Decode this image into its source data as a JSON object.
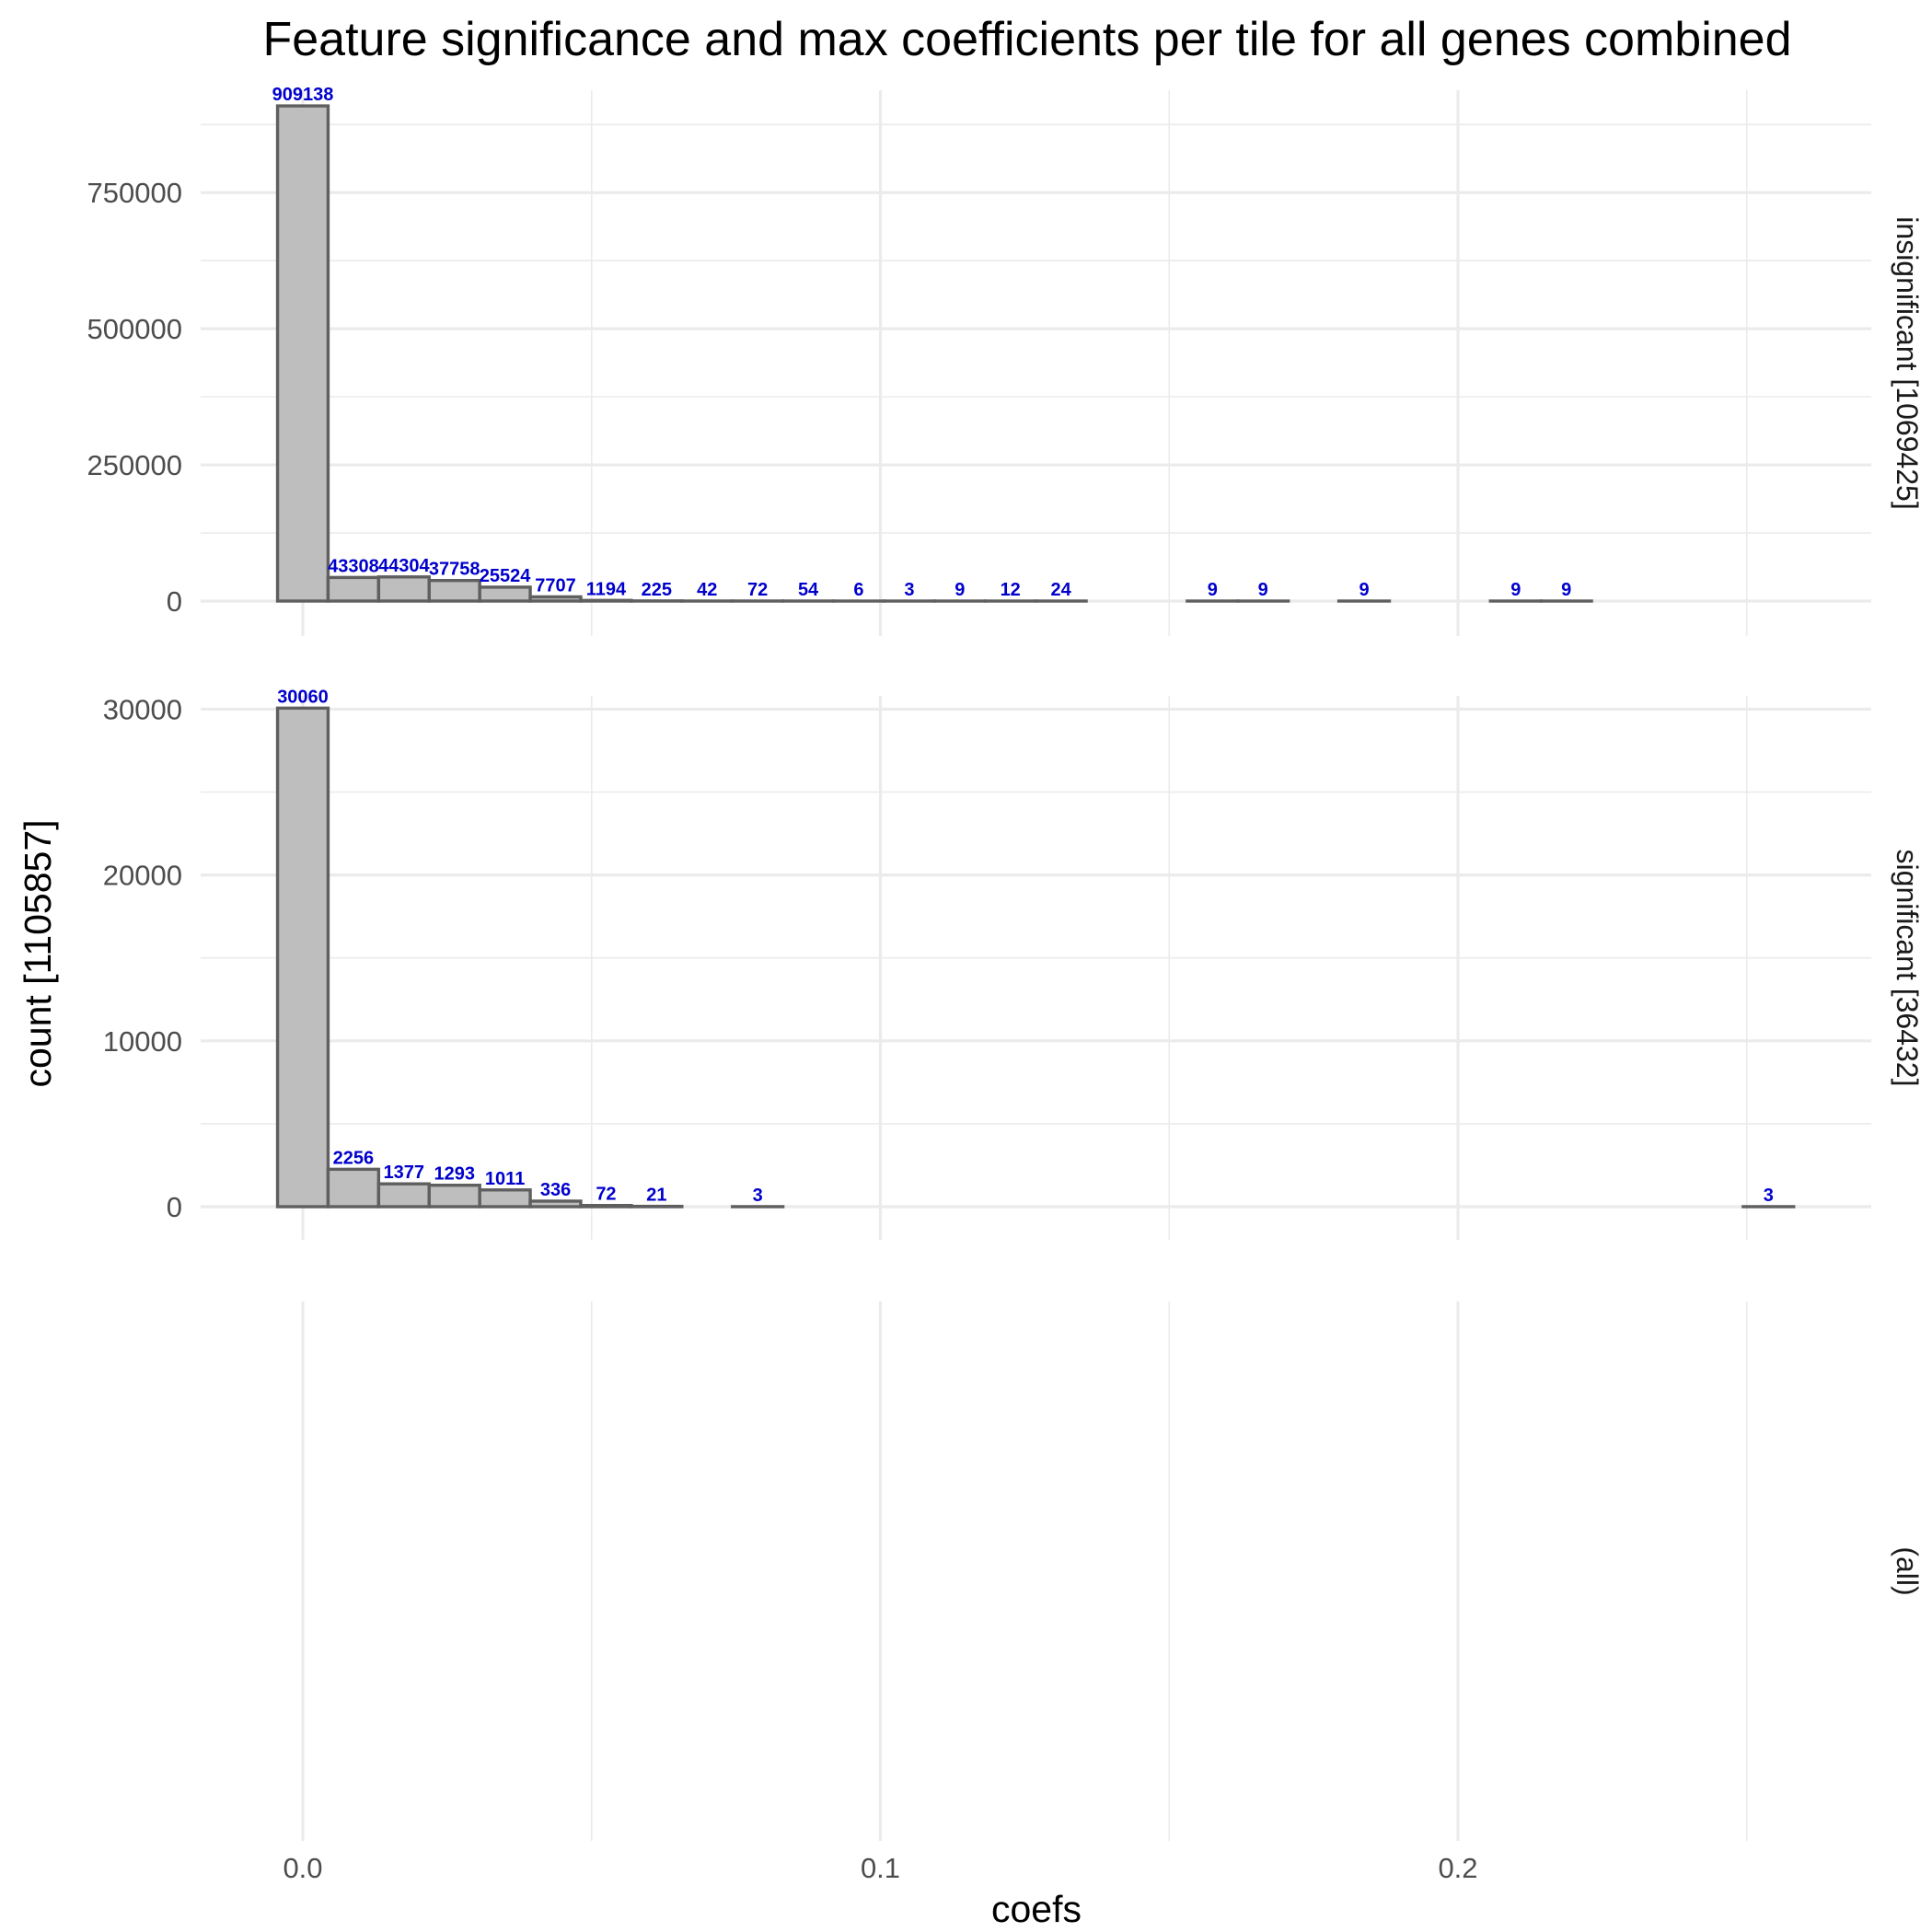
{
  "chart_data": {
    "type": "bar",
    "title": "Feature significance and max coefficients per tile for all genes combined",
    "xlabel": "coefs",
    "ylabel": "count [1105857]",
    "grid": true,
    "legend": "none",
    "bar_fill": "#bebebe",
    "bar_outline": "#5f5f5f",
    "label_color": "#0000cc",
    "xlim": [
      -0.018,
      0.271
    ],
    "x_ticks": [
      0.0,
      0.1,
      0.2
    ],
    "x_tick_labels": [
      "0.0",
      "0.1",
      "0.2"
    ],
    "bin_width": 0.00875,
    "panels": [
      {
        "strip": "insignificant [1069425]",
        "ylim": [
          0,
          938000
        ],
        "y_ticks": [
          0,
          250000,
          500000,
          750000
        ],
        "y_tick_labels": [
          "0",
          "250000",
          "500000",
          "750000"
        ],
        "bins": [
          {
            "x": 0.0,
            "count": 909138,
            "label": "909138"
          },
          {
            "x": 0.00875,
            "count": 43308,
            "label": "43308"
          },
          {
            "x": 0.0175,
            "count": 44304,
            "label": "44304"
          },
          {
            "x": 0.02625,
            "count": 37758,
            "label": "37758"
          },
          {
            "x": 0.035,
            "count": 25524,
            "label": "25524"
          },
          {
            "x": 0.04375,
            "count": 7707,
            "label": "7707"
          },
          {
            "x": 0.0525,
            "count": 1194,
            "label": "1194"
          },
          {
            "x": 0.06125,
            "count": 225,
            "label": "225"
          },
          {
            "x": 0.07,
            "count": 42,
            "label": "42"
          },
          {
            "x": 0.07875,
            "count": 72,
            "label": "72"
          },
          {
            "x": 0.0875,
            "count": 54,
            "label": "54"
          },
          {
            "x": 0.09625,
            "count": 6,
            "label": "6"
          },
          {
            "x": 0.105,
            "count": 3,
            "label": "3"
          },
          {
            "x": 0.11375,
            "count": 9,
            "label": "9"
          },
          {
            "x": 0.1225,
            "count": 12,
            "label": "12"
          },
          {
            "x": 0.13125,
            "count": 24,
            "label": "24"
          },
          {
            "x": 0.14,
            "count": 0,
            "label": ""
          },
          {
            "x": 0.14875,
            "count": 0,
            "label": ""
          },
          {
            "x": 0.1575,
            "count": 9,
            "label": "9"
          },
          {
            "x": 0.16625,
            "count": 9,
            "label": "9"
          },
          {
            "x": 0.175,
            "count": 0,
            "label": ""
          },
          {
            "x": 0.18375,
            "count": 9,
            "label": "9"
          },
          {
            "x": 0.1925,
            "count": 0,
            "label": ""
          },
          {
            "x": 0.20125,
            "count": 0,
            "label": ""
          },
          {
            "x": 0.21,
            "count": 9,
            "label": "9"
          },
          {
            "x": 0.21875,
            "count": 9,
            "label": "9"
          },
          {
            "x": 0.2275,
            "count": 0,
            "label": ""
          },
          {
            "x": 0.23625,
            "count": 0,
            "label": ""
          },
          {
            "x": 0.245,
            "count": 0,
            "label": ""
          },
          {
            "x": 0.25375,
            "count": 0,
            "label": ""
          }
        ]
      },
      {
        "strip": "significant [36432]",
        "ylim": [
          0,
          30800
        ],
        "y_ticks": [
          0,
          10000,
          20000,
          30000
        ],
        "y_tick_labels": [
          "0",
          "10000",
          "20000",
          "30000"
        ],
        "bins": [
          {
            "x": 0.0,
            "count": 30060,
            "label": "30060"
          },
          {
            "x": 0.00875,
            "count": 2256,
            "label": "2256"
          },
          {
            "x": 0.0175,
            "count": 1377,
            "label": "1377"
          },
          {
            "x": 0.02625,
            "count": 1293,
            "label": "1293"
          },
          {
            "x": 0.035,
            "count": 1011,
            "label": "1011"
          },
          {
            "x": 0.04375,
            "count": 336,
            "label": "336"
          },
          {
            "x": 0.0525,
            "count": 72,
            "label": "72"
          },
          {
            "x": 0.06125,
            "count": 21,
            "label": "21"
          },
          {
            "x": 0.07,
            "count": 0,
            "label": ""
          },
          {
            "x": 0.07875,
            "count": 3,
            "label": "3"
          },
          {
            "x": 0.0875,
            "count": 0,
            "label": ""
          },
          {
            "x": 0.09625,
            "count": 0,
            "label": ""
          },
          {
            "x": 0.105,
            "count": 0,
            "label": ""
          },
          {
            "x": 0.11375,
            "count": 0,
            "label": ""
          },
          {
            "x": 0.1225,
            "count": 0,
            "label": ""
          },
          {
            "x": 0.13125,
            "count": 0,
            "label": ""
          },
          {
            "x": 0.14,
            "count": 0,
            "label": ""
          },
          {
            "x": 0.14875,
            "count": 0,
            "label": ""
          },
          {
            "x": 0.1575,
            "count": 0,
            "label": ""
          },
          {
            "x": 0.16625,
            "count": 0,
            "label": ""
          },
          {
            "x": 0.175,
            "count": 0,
            "label": ""
          },
          {
            "x": 0.18375,
            "count": 0,
            "label": ""
          },
          {
            "x": 0.1925,
            "count": 0,
            "label": ""
          },
          {
            "x": 0.20125,
            "count": 0,
            "label": ""
          },
          {
            "x": 0.21,
            "count": 0,
            "label": ""
          },
          {
            "x": 0.21875,
            "count": 0,
            "label": ""
          },
          {
            "x": 0.2275,
            "count": 0,
            "label": ""
          },
          {
            "x": 0.23625,
            "count": 0,
            "label": ""
          },
          {
            "x": 0.245,
            "count": 0,
            "label": ""
          },
          {
            "x": 0.25375,
            "count": 3,
            "label": "3"
          }
        ]
      },
      {
        "strip": "(all)",
        "bins": []
      }
    ]
  }
}
